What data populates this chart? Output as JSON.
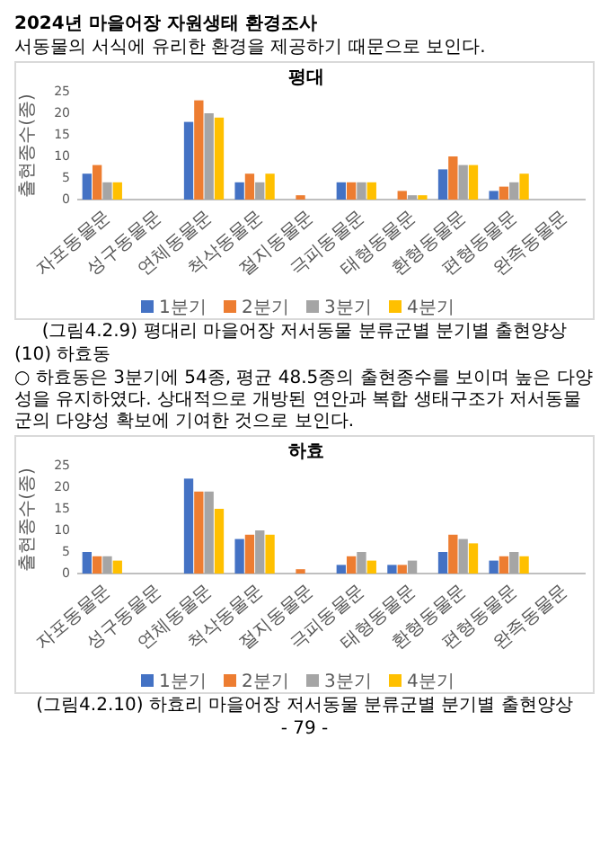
{
  "chart_data": [
    {
      "type": "bar",
      "title": "평대",
      "ylabel": "출현종수(종)",
      "categories": [
        "자포동물문",
        "성구동물문",
        "연체동물문",
        "척삭동물문",
        "절지동물문",
        "극피동물문",
        "태형동물문",
        "환형동물문",
        "편형동물문",
        "완족동물문"
      ],
      "series": [
        {
          "name": "1분기",
          "color": "#4472c4",
          "values": [
            6,
            0,
            18,
            4,
            0,
            4,
            0,
            7,
            2,
            0
          ]
        },
        {
          "name": "2분기",
          "color": "#ed7d31",
          "values": [
            8,
            0,
            23,
            6,
            1,
            4,
            2,
            10,
            3,
            0
          ]
        },
        {
          "name": "3분기",
          "color": "#a5a5a5",
          "values": [
            4,
            0,
            20,
            4,
            0,
            4,
            1,
            8,
            4,
            0
          ]
        },
        {
          "name": "4분기",
          "color": "#ffc000",
          "values": [
            4,
            0,
            19,
            6,
            0,
            4,
            1,
            8,
            6,
            0
          ]
        }
      ],
      "ylim": [
        0,
        25
      ],
      "yticks": [
        0,
        5,
        10,
        15,
        20,
        25
      ],
      "legend": "bottom",
      "annotations": [
        "2024년 마을어장 자원생태 환경조사",
        "서동물의 서식에 유리한 환경을 제공하기 때문으로 보인다.",
        "(그림4.2.9) 평대리 마을어장 저서동물 분류군별 분기별 출현양상"
      ]
    },
    {
      "type": "bar",
      "title": "하효",
      "ylabel": "출현종수(종)",
      "categories": [
        "자포동물문",
        "성구동물문",
        "연체동물문",
        "척삭동물문",
        "절지동물문",
        "극피동물문",
        "태형동물문",
        "환형동물문",
        "편형동물문",
        "완족동물문"
      ],
      "series": [
        {
          "name": "1분기",
          "color": "#4472c4",
          "values": [
            5,
            0,
            22,
            8,
            0,
            2,
            2,
            5,
            3,
            0
          ]
        },
        {
          "name": "2분기",
          "color": "#ed7d31",
          "values": [
            4,
            0,
            19,
            9,
            1,
            4,
            2,
            9,
            4,
            0
          ]
        },
        {
          "name": "3분기",
          "color": "#a5a5a5",
          "values": [
            4,
            0,
            19,
            10,
            0,
            5,
            3,
            8,
            5,
            0
          ]
        },
        {
          "name": "4분기",
          "color": "#ffc000",
          "values": [
            3,
            0,
            15,
            9,
            0,
            3,
            0,
            7,
            4,
            0
          ]
        }
      ],
      "ylim": [
        0,
        25
      ],
      "yticks": [
        0,
        5,
        10,
        15,
        20,
        25
      ],
      "legend": "bottom",
      "annotations": [
        "(10) 하효동",
        "○ 하효동은 3분기에 54종, 평균 48.5종의 출현종수를 보이며 높은 다양성을 유지하였다. 상대적으로 개방된 연안과 복합 생태구조가 저서동물군의 다양성 확보에 기여한 것으로 보인다.",
        "(그림4.2.10) 하효리 마을어장 저서동물 분류군별 분기별 출현양상",
        "- 79 -"
      ]
    }
  ]
}
